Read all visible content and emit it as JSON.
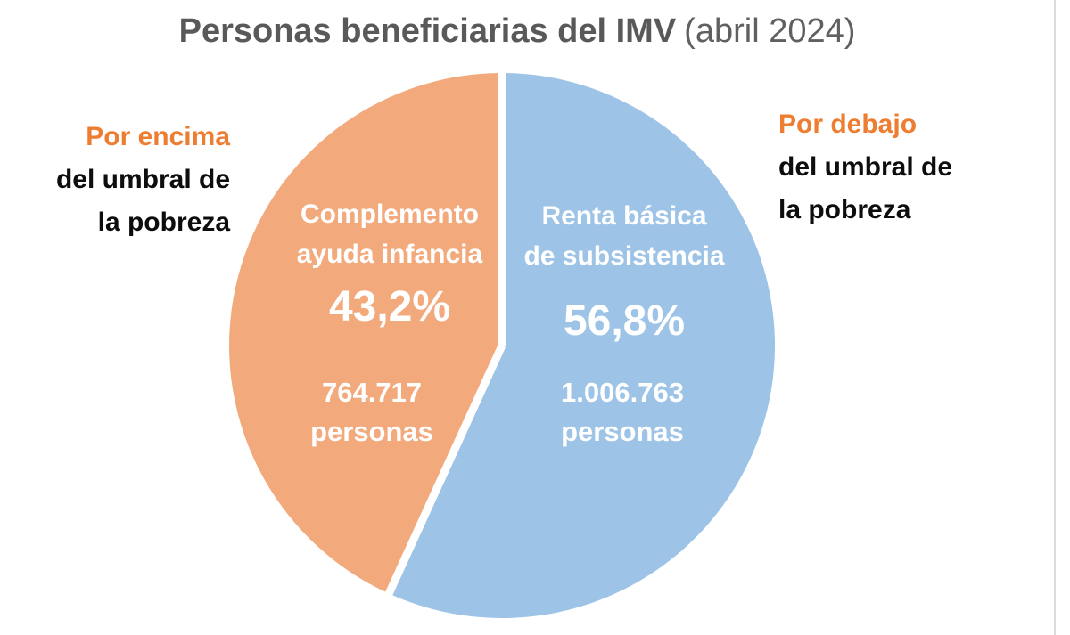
{
  "title": {
    "main": "Personas beneficiarias del IMV",
    "suffix": "(abril 2024)"
  },
  "annotations": {
    "left": {
      "highlight": "Por encima",
      "line2": "del umbral de",
      "line3": "la pobreza"
    },
    "right": {
      "highlight": "Por debajo",
      "line2": "del umbral de",
      "line3": "la pobreza"
    }
  },
  "chart_data": {
    "type": "pie",
    "title": "Personas beneficiarias del IMV (abril 2024)",
    "start_angle_deg": 0,
    "direction": "clockwise",
    "separator_color": "#FFFFFF",
    "slices": [
      {
        "name": "Renta básica de subsistencia",
        "label_line1": "Renta básica",
        "label_line2": "de subsistencia",
        "percent": 56.8,
        "percent_label": "56,8%",
        "value": 1006763,
        "value_label": "1.006.763",
        "value_unit": "personas",
        "color": "#9DC3E6",
        "annotation": "Por debajo del umbral de la pobreza"
      },
      {
        "name": "Complemento ayuda infancia",
        "label_line1": "Complemento",
        "label_line2": "ayuda infancia",
        "percent": 43.2,
        "percent_label": "43,2%",
        "value": 764717,
        "value_label": "764.717",
        "value_unit": "personas",
        "color": "#F2AA7D",
        "annotation": "Por encima del umbral de la pobreza"
      }
    ]
  },
  "colors": {
    "title_text": "#595959",
    "highlight_orange": "#ED7D31",
    "annotation_black": "#0d0d0d",
    "slice_blue": "#9DC3E6",
    "slice_orange": "#F2AA7D",
    "separator": "#FFFFFF",
    "edge_line": "#DCDCDC"
  }
}
